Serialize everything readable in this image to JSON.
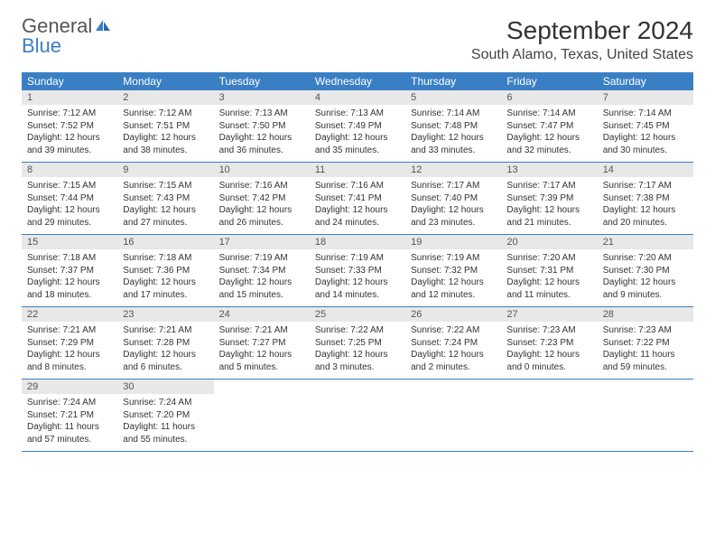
{
  "logo": {
    "word1": "General",
    "word2": "Blue"
  },
  "title": "September 2024",
  "location": "South Alamo, Texas, United States",
  "colors": {
    "header_bg": "#3a7fc4",
    "header_text": "#ffffff",
    "daynum_bg": "#e8e8e8",
    "row_divider": "#3a7fc4",
    "text": "#333333",
    "logo_gray": "#555555",
    "logo_blue": "#3a7fc4"
  },
  "weekdays": [
    "Sunday",
    "Monday",
    "Tuesday",
    "Wednesday",
    "Thursday",
    "Friday",
    "Saturday"
  ],
  "weeks": [
    [
      {
        "n": "1",
        "sr": "7:12 AM",
        "ss": "7:52 PM",
        "dl": "12 hours and 39 minutes."
      },
      {
        "n": "2",
        "sr": "7:12 AM",
        "ss": "7:51 PM",
        "dl": "12 hours and 38 minutes."
      },
      {
        "n": "3",
        "sr": "7:13 AM",
        "ss": "7:50 PM",
        "dl": "12 hours and 36 minutes."
      },
      {
        "n": "4",
        "sr": "7:13 AM",
        "ss": "7:49 PM",
        "dl": "12 hours and 35 minutes."
      },
      {
        "n": "5",
        "sr": "7:14 AM",
        "ss": "7:48 PM",
        "dl": "12 hours and 33 minutes."
      },
      {
        "n": "6",
        "sr": "7:14 AM",
        "ss": "7:47 PM",
        "dl": "12 hours and 32 minutes."
      },
      {
        "n": "7",
        "sr": "7:14 AM",
        "ss": "7:45 PM",
        "dl": "12 hours and 30 minutes."
      }
    ],
    [
      {
        "n": "8",
        "sr": "7:15 AM",
        "ss": "7:44 PM",
        "dl": "12 hours and 29 minutes."
      },
      {
        "n": "9",
        "sr": "7:15 AM",
        "ss": "7:43 PM",
        "dl": "12 hours and 27 minutes."
      },
      {
        "n": "10",
        "sr": "7:16 AM",
        "ss": "7:42 PM",
        "dl": "12 hours and 26 minutes."
      },
      {
        "n": "11",
        "sr": "7:16 AM",
        "ss": "7:41 PM",
        "dl": "12 hours and 24 minutes."
      },
      {
        "n": "12",
        "sr": "7:17 AM",
        "ss": "7:40 PM",
        "dl": "12 hours and 23 minutes."
      },
      {
        "n": "13",
        "sr": "7:17 AM",
        "ss": "7:39 PM",
        "dl": "12 hours and 21 minutes."
      },
      {
        "n": "14",
        "sr": "7:17 AM",
        "ss": "7:38 PM",
        "dl": "12 hours and 20 minutes."
      }
    ],
    [
      {
        "n": "15",
        "sr": "7:18 AM",
        "ss": "7:37 PM",
        "dl": "12 hours and 18 minutes."
      },
      {
        "n": "16",
        "sr": "7:18 AM",
        "ss": "7:36 PM",
        "dl": "12 hours and 17 minutes."
      },
      {
        "n": "17",
        "sr": "7:19 AM",
        "ss": "7:34 PM",
        "dl": "12 hours and 15 minutes."
      },
      {
        "n": "18",
        "sr": "7:19 AM",
        "ss": "7:33 PM",
        "dl": "12 hours and 14 minutes."
      },
      {
        "n": "19",
        "sr": "7:19 AM",
        "ss": "7:32 PM",
        "dl": "12 hours and 12 minutes."
      },
      {
        "n": "20",
        "sr": "7:20 AM",
        "ss": "7:31 PM",
        "dl": "12 hours and 11 minutes."
      },
      {
        "n": "21",
        "sr": "7:20 AM",
        "ss": "7:30 PM",
        "dl": "12 hours and 9 minutes."
      }
    ],
    [
      {
        "n": "22",
        "sr": "7:21 AM",
        "ss": "7:29 PM",
        "dl": "12 hours and 8 minutes."
      },
      {
        "n": "23",
        "sr": "7:21 AM",
        "ss": "7:28 PM",
        "dl": "12 hours and 6 minutes."
      },
      {
        "n": "24",
        "sr": "7:21 AM",
        "ss": "7:27 PM",
        "dl": "12 hours and 5 minutes."
      },
      {
        "n": "25",
        "sr": "7:22 AM",
        "ss": "7:25 PM",
        "dl": "12 hours and 3 minutes."
      },
      {
        "n": "26",
        "sr": "7:22 AM",
        "ss": "7:24 PM",
        "dl": "12 hours and 2 minutes."
      },
      {
        "n": "27",
        "sr": "7:23 AM",
        "ss": "7:23 PM",
        "dl": "12 hours and 0 minutes."
      },
      {
        "n": "28",
        "sr": "7:23 AM",
        "ss": "7:22 PM",
        "dl": "11 hours and 59 minutes."
      }
    ],
    [
      {
        "n": "29",
        "sr": "7:24 AM",
        "ss": "7:21 PM",
        "dl": "11 hours and 57 minutes."
      },
      {
        "n": "30",
        "sr": "7:24 AM",
        "ss": "7:20 PM",
        "dl": "11 hours and 55 minutes."
      },
      null,
      null,
      null,
      null,
      null
    ]
  ],
  "labels": {
    "sunrise": "Sunrise: ",
    "sunset": "Sunset: ",
    "daylight": "Daylight: "
  }
}
